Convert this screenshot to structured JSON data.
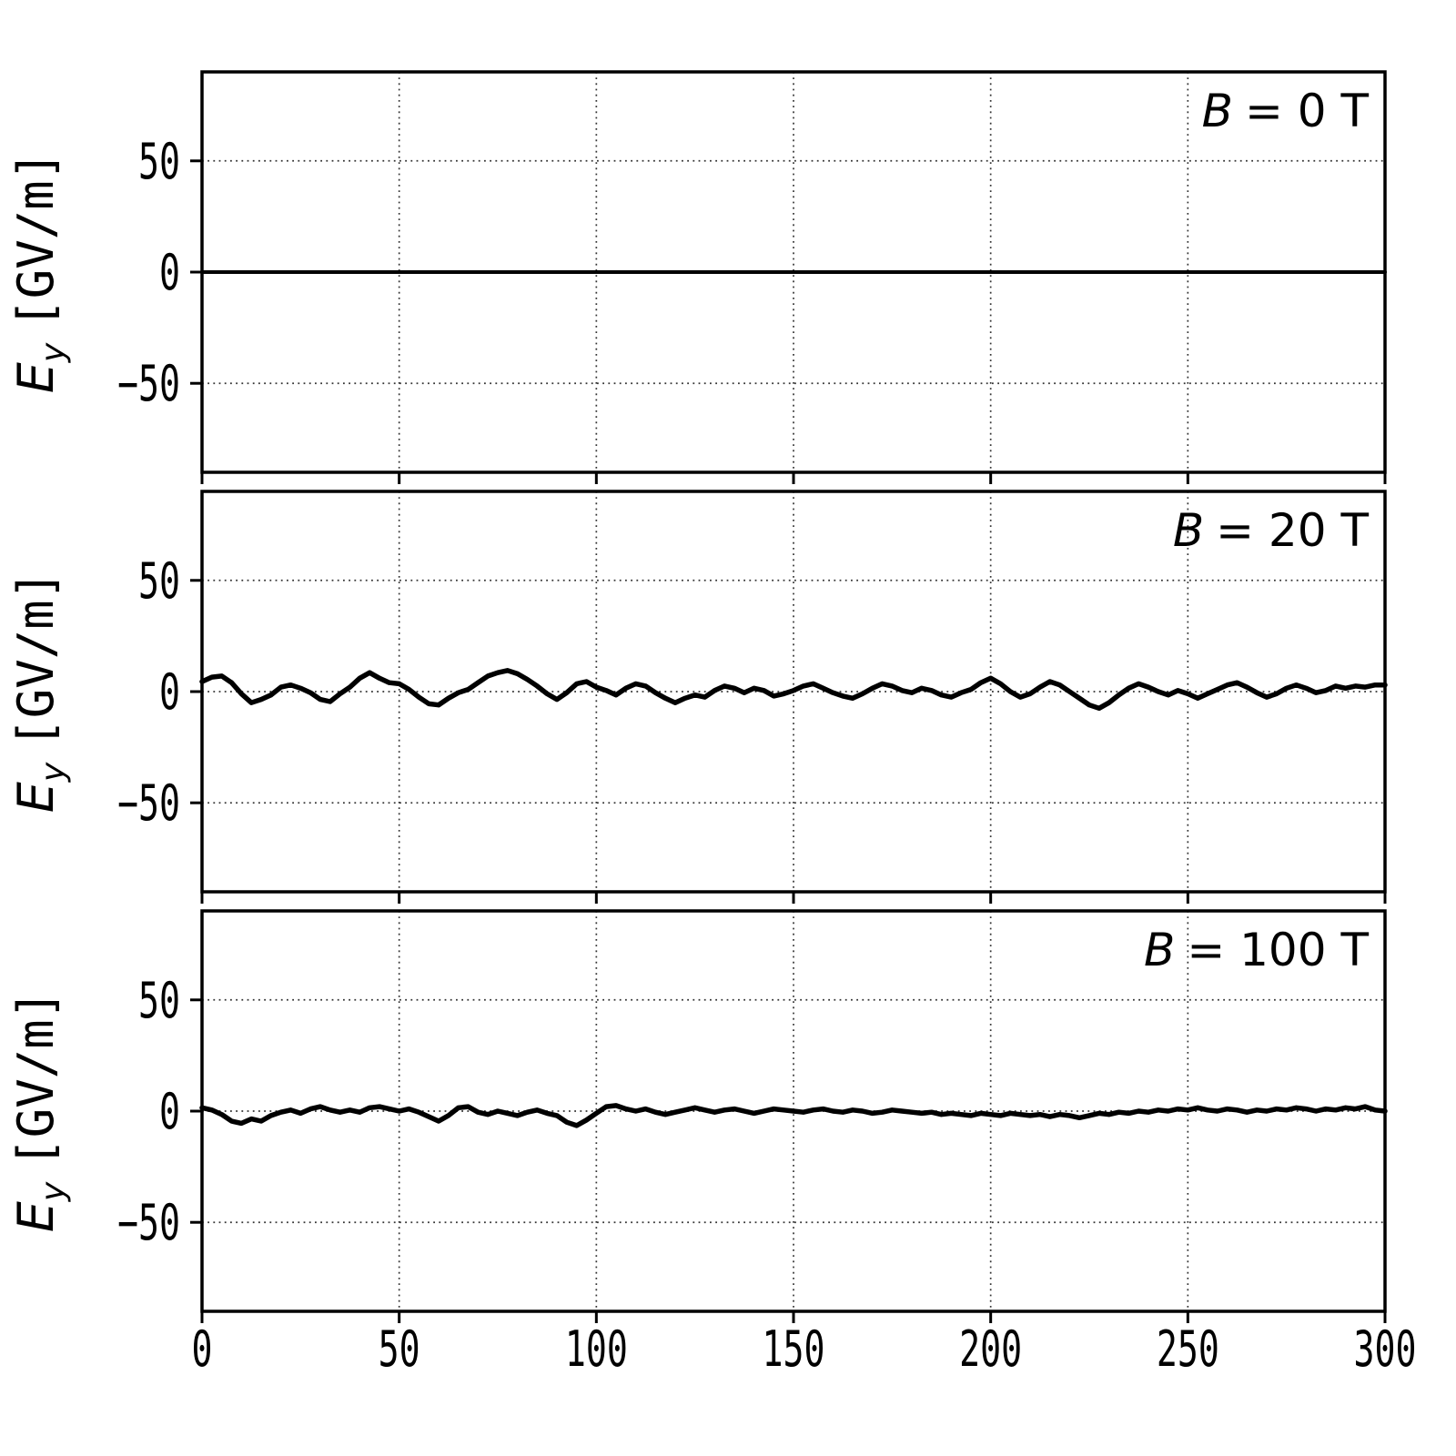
{
  "figure": {
    "background": "#ffffff",
    "trace_color": "#000000",
    "grid_color": "#333333",
    "spine_color": "#000000"
  },
  "axes": {
    "xlim": [
      0,
      300
    ],
    "ylim": [
      -90,
      90
    ],
    "xticks": [
      0,
      50,
      100,
      150,
      200,
      250,
      300
    ],
    "xtick_labels": [
      "0",
      "50",
      "100",
      "150",
      "200",
      "250",
      "300"
    ],
    "yticks": [
      50,
      0,
      -50
    ],
    "ytick_labels": [
      "50",
      "0",
      "−50"
    ],
    "ylabel": {
      "var": "E",
      "sub": "y",
      "unit": "[GV/m]"
    },
    "grid_style": "dotted"
  },
  "chart_data": [
    {
      "type": "line",
      "panel": "top",
      "annotation": {
        "var": "B",
        "rest": "= 0 T"
      },
      "ylabel": "E_y [GV/m]",
      "x": {
        "start": 0,
        "step": 300
      },
      "y": [
        0,
        0
      ]
    },
    {
      "type": "line",
      "panel": "middle",
      "annotation": {
        "var": "B",
        "rest": "= 20 T"
      },
      "ylabel": "E_y [GV/m]",
      "x": {
        "start": 0,
        "step": 2.5
      },
      "y": [
        4.5,
        6.5,
        7,
        4,
        -1,
        -5,
        -3.5,
        -1.5,
        2,
        3,
        1.5,
        -0.5,
        -3.5,
        -4.5,
        -1,
        2,
        6,
        8.5,
        6,
        4,
        3.5,
        1,
        -2.5,
        -5.5,
        -6,
        -3,
        -0.5,
        1,
        4,
        7,
        8.5,
        9.5,
        8,
        5.5,
        2.5,
        -1,
        -3.5,
        -0.5,
        3.5,
        4.5,
        2,
        0.5,
        -1.5,
        1.5,
        3.5,
        2.5,
        -0.5,
        -3,
        -5,
        -3,
        -1.5,
        -2.5,
        0.5,
        2.5,
        1.5,
        -0.5,
        1.5,
        0.5,
        -2,
        -1,
        0.5,
        2.5,
        3.5,
        1.5,
        -0.5,
        -2,
        -3,
        -1,
        1.5,
        3.5,
        2.5,
        0.5,
        -0.5,
        1.5,
        0.5,
        -1.5,
        -2.5,
        -0.5,
        1,
        4,
        6,
        3.5,
        0,
        -2.5,
        -1,
        2,
        4.5,
        3,
        0,
        -3,
        -6,
        -7.5,
        -5,
        -1.5,
        1.5,
        3.5,
        2,
        0,
        -1.5,
        0.5,
        -1,
        -3,
        -1,
        1,
        3,
        4,
        2,
        -0.5,
        -2.5,
        -1,
        1.5,
        3,
        1.5,
        -0.5,
        0.5,
        2.5,
        1.5,
        2.5,
        2,
        3,
        3
      ]
    },
    {
      "type": "line",
      "panel": "bottom",
      "annotation": {
        "var": "B",
        "rest": "= 100 T"
      },
      "ylabel": "E_y [GV/m]",
      "x": {
        "start": 0,
        "step": 2.5
      },
      "y": [
        1.5,
        0.5,
        -1.5,
        -4.5,
        -5.5,
        -3.5,
        -4.5,
        -2,
        -0.5,
        0.5,
        -1,
        1,
        2,
        0.5,
        -0.5,
        0.5,
        -0.5,
        1.5,
        2,
        1,
        0,
        1,
        -0.5,
        -2.5,
        -4.5,
        -2,
        1.5,
        2,
        -0.5,
        -1.5,
        0,
        -1,
        -2,
        -0.5,
        0.5,
        -1,
        -2,
        -5,
        -6.5,
        -4,
        -1,
        2,
        2.5,
        1,
        0,
        1,
        -0.5,
        -1.5,
        -0.5,
        0.5,
        1.5,
        0.5,
        -0.5,
        0.5,
        1,
        0,
        -1,
        0,
        1,
        0.5,
        0,
        -0.5,
        0.5,
        1,
        0,
        -0.5,
        0.5,
        0,
        -1,
        -0.5,
        0.5,
        0,
        -0.5,
        -1,
        -0.5,
        -1.5,
        -1,
        -1.5,
        -2,
        -1,
        -1.5,
        -2,
        -1,
        -1.5,
        -2,
        -1.5,
        -2.5,
        -1.5,
        -2,
        -3,
        -2,
        -1,
        -1.5,
        -0.5,
        -1,
        0,
        -0.5,
        0.5,
        0,
        1,
        0.5,
        1.5,
        0.5,
        0,
        1,
        0.5,
        -0.5,
        0.5,
        0,
        1,
        0.5,
        1.5,
        1,
        0,
        1,
        0.5,
        1.5,
        1,
        2,
        0.5,
        0
      ]
    }
  ]
}
